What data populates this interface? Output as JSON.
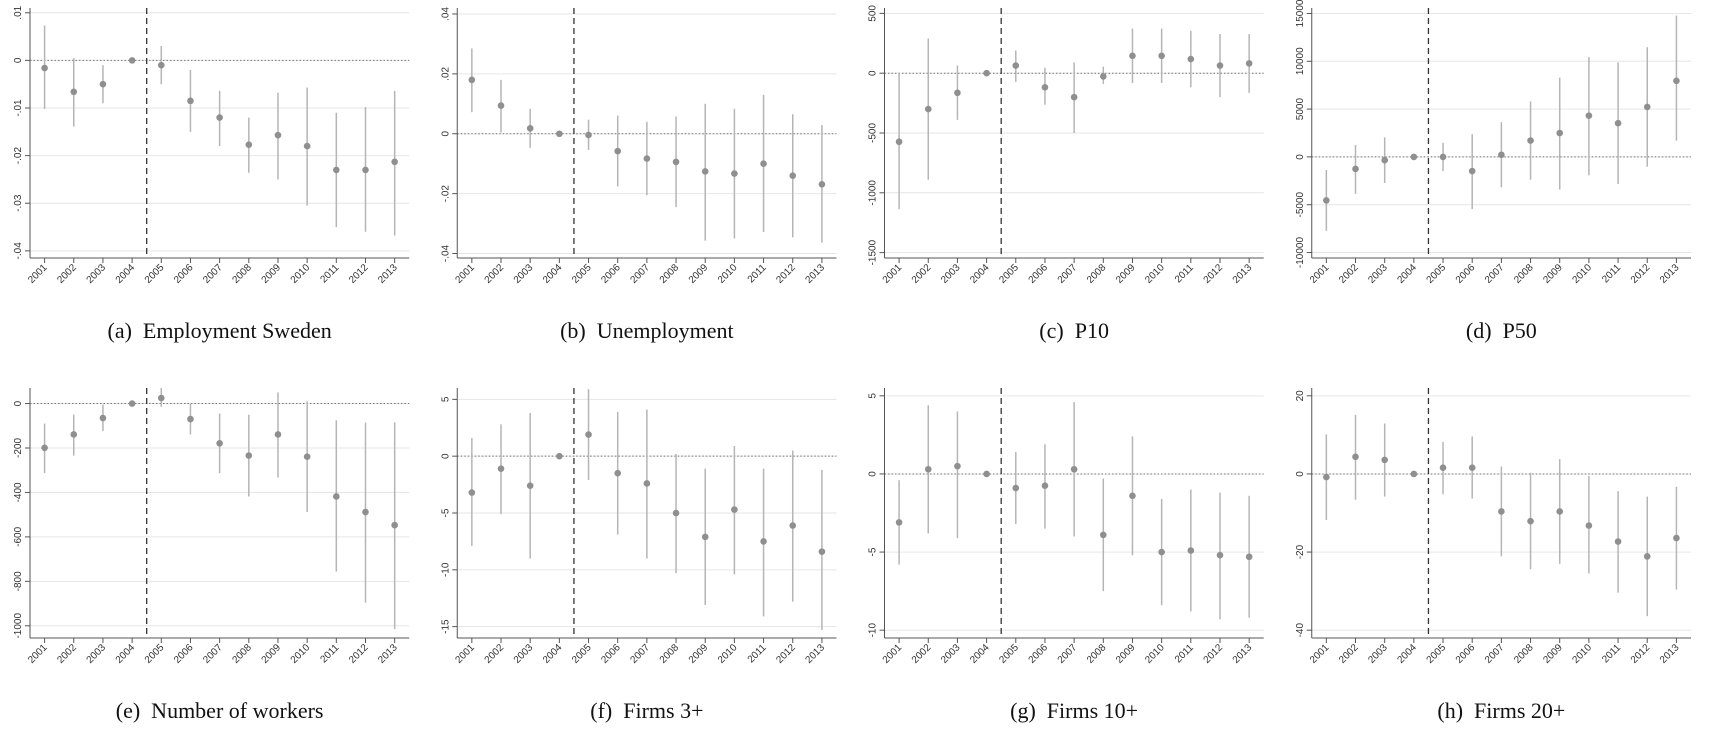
{
  "chart_data": [
    {
      "type": "errorbar",
      "title": "(a)  Employment Sweden",
      "categories": [
        "2001",
        "2002",
        "2003",
        "2004",
        "2005",
        "2006",
        "2007",
        "2008",
        "2009",
        "2010",
        "2011",
        "2012",
        "2013"
      ],
      "values": [
        -0.0016,
        -0.0066,
        -0.005,
        0,
        -0.001,
        -0.0085,
        -0.012,
        -0.0177,
        -0.0157,
        -0.018,
        -0.023,
        -0.023,
        -0.0213
      ],
      "ci_lower": [
        -0.0102,
        -0.0139,
        -0.009,
        null,
        -0.005,
        -0.015,
        -0.018,
        -0.0236,
        -0.025,
        -0.0305,
        -0.035,
        -0.036,
        -0.0368
      ],
      "ci_upper": [
        0.0073,
        0.0005,
        -0.001,
        null,
        0.003,
        -0.002,
        -0.0064,
        -0.012,
        -0.0068,
        -0.0057,
        -0.011,
        -0.0098,
        -0.0064
      ],
      "ylim": [
        -0.0415,
        0.011
      ],
      "yticks": [
        {
          "value": 0.01,
          "label": ".01"
        },
        0,
        {
          "value": -0.01,
          "label": "-.01"
        },
        {
          "value": -0.02,
          "label": "-.02"
        },
        {
          "value": -0.03,
          "label": "-.03"
        },
        {
          "value": -0.04,
          "label": "-.04"
        }
      ],
      "grid": true,
      "color": "#8f8f8f"
    },
    {
      "type": "errorbar",
      "title": "(b)  Unemployment",
      "categories": [
        "2001",
        "2002",
        "2003",
        "2004",
        "2005",
        "2006",
        "2007",
        "2008",
        "2009",
        "2010",
        "2011",
        "2012",
        "2013"
      ],
      "values": [
        0.018,
        0.0094,
        0.0018,
        0,
        -0.0004,
        -0.0058,
        -0.0083,
        -0.0094,
        -0.0126,
        -0.0133,
        -0.01,
        -0.014,
        -0.0169
      ],
      "ci_lower": [
        0.0072,
        0.0004,
        -0.0047,
        null,
        -0.0054,
        -0.0176,
        -0.0205,
        -0.0245,
        -0.0357,
        -0.035,
        -0.0328,
        -0.0346,
        -0.0364
      ],
      "ci_upper": [
        0.0285,
        0.018,
        0.0083,
        null,
        0.0047,
        0.0061,
        0.004,
        0.0058,
        0.01,
        0.0083,
        0.013,
        0.0065,
        0.0029
      ],
      "ylim": [
        -0.0415,
        0.042
      ],
      "yticks": [
        {
          "value": 0.04,
          "label": ".04"
        },
        {
          "value": 0.02,
          "label": ".02"
        },
        0,
        {
          "value": -0.02,
          "label": "-.02"
        },
        {
          "value": -0.04,
          "label": "-.04"
        }
      ],
      "grid": true,
      "color": "#8f8f8f"
    },
    {
      "type": "errorbar",
      "title": "(c)  P10",
      "categories": [
        "2001",
        "2002",
        "2003",
        "2004",
        "2005",
        "2006",
        "2007",
        "2008",
        "2009",
        "2010",
        "2011",
        "2012",
        "2013"
      ],
      "values": [
        -573,
        -300,
        -164,
        0,
        64,
        -118,
        -200,
        -27,
        145,
        145,
        118,
        64,
        82
      ],
      "ci_lower": [
        -1136,
        -890,
        -390,
        null,
        -73,
        -264,
        -500,
        -90,
        -82,
        -82,
        -118,
        -200,
        -164
      ],
      "ci_upper": [
        0,
        290,
        64,
        null,
        190,
        45,
        90,
        55,
        373,
        373,
        355,
        327,
        327
      ],
      "ylim": [
        -1545,
        545
      ],
      "yticks": [
        500,
        0,
        -500,
        -1000,
        -1500
      ],
      "grid": true,
      "color": "#8f8f8f"
    },
    {
      "type": "errorbar",
      "title": "(d)  P50",
      "categories": [
        "2001",
        "2002",
        "2003",
        "2004",
        "2005",
        "2006",
        "2007",
        "2008",
        "2009",
        "2010",
        "2011",
        "2012",
        "2013"
      ],
      "values": [
        -4545,
        -1250,
        -340,
        0,
        0,
        -1477,
        227,
        1705,
        2500,
        4318,
        3523,
        5227,
        7955
      ],
      "ci_lower": [
        -7727,
        -3864,
        -2727,
        null,
        -1477,
        -5455,
        -3182,
        -2386,
        -3409,
        -1932,
        -2841,
        -1023,
        1705
      ],
      "ci_upper": [
        -1364,
        1250,
        2045,
        null,
        1477,
        2386,
        3636,
        5795,
        8295,
        10455,
        9886,
        11477,
        14773
      ],
      "ylim": [
        -10570,
        15570
      ],
      "yticks": [
        15000,
        10000,
        5000,
        0,
        -5000,
        -10000
      ],
      "grid": true,
      "color": "#8f8f8f"
    },
    {
      "type": "errorbar",
      "title": "(e)  Number of workers",
      "categories": [
        "2001",
        "2002",
        "2003",
        "2004",
        "2005",
        "2006",
        "2007",
        "2008",
        "2009",
        "2010",
        "2011",
        "2012",
        "2013"
      ],
      "values": [
        -199,
        -139,
        -65,
        0,
        25,
        -70,
        -179,
        -234,
        -139,
        -239,
        -418,
        -488,
        -547
      ],
      "ci_lower": [
        -313,
        -234,
        -124,
        null,
        -15,
        -139,
        -313,
        -418,
        -333,
        -488,
        -756,
        -896,
        -1015
      ],
      "ci_upper": [
        -90,
        -50,
        -5,
        null,
        70,
        0,
        -45,
        -50,
        50,
        10,
        -75,
        -85,
        -85
      ],
      "ylim": [
        -1055,
        70
      ],
      "yticks": [
        0,
        -200,
        -400,
        -600,
        -800,
        -1000
      ],
      "grid": true,
      "color": "#8f8f8f"
    },
    {
      "type": "errorbar",
      "title": "(f)  Firms 3+",
      "categories": [
        "2001",
        "2002",
        "2003",
        "2004",
        "2005",
        "2006",
        "2007",
        "2008",
        "2009",
        "2010",
        "2011",
        "2012",
        "2013"
      ],
      "values": [
        -3.2,
        -1.1,
        -2.6,
        0,
        1.9,
        -1.5,
        -2.4,
        -5.0,
        -7.1,
        -4.7,
        -7.5,
        -6.1,
        -8.4
      ],
      "ci_lower": [
        -7.9,
        -5.1,
        -9.0,
        null,
        -2.1,
        -6.9,
        -9.0,
        -10.3,
        -13.1,
        -10.4,
        -14.1,
        -12.8,
        -15.3
      ],
      "ci_upper": [
        1.6,
        2.8,
        3.8,
        null,
        5.9,
        3.9,
        4.1,
        0.2,
        -1.1,
        0.9,
        -1.1,
        0.5,
        -1.2
      ],
      "ylim": [
        -16,
        6
      ],
      "yticks": [
        5,
        0,
        -5,
        -10,
        -15
      ],
      "grid": true,
      "color": "#8f8f8f"
    },
    {
      "type": "errorbar",
      "title": "(g)  Firms 10+",
      "categories": [
        "2001",
        "2002",
        "2003",
        "2004",
        "2005",
        "2006",
        "2007",
        "2008",
        "2009",
        "2010",
        "2011",
        "2012",
        "2013"
      ],
      "values": [
        -3.1,
        0.3,
        0.5,
        0,
        -0.9,
        -0.75,
        0.3,
        -3.9,
        -1.4,
        -5.0,
        -4.9,
        -5.2,
        -5.3
      ],
      "ci_lower": [
        -5.8,
        -3.8,
        -4.1,
        null,
        -3.2,
        -3.5,
        -4.0,
        -7.5,
        -5.2,
        -8.4,
        -8.8,
        -9.3,
        -9.2
      ],
      "ci_upper": [
        -0.4,
        4.4,
        4.0,
        null,
        1.4,
        1.9,
        4.6,
        -0.3,
        2.4,
        -1.6,
        -1.0,
        -1.2,
        -1.4
      ],
      "ylim": [
        -10.5,
        5.5
      ],
      "yticks": [
        5,
        0,
        -5,
        -10
      ],
      "grid": true,
      "color": "#8f8f8f"
    },
    {
      "type": "errorbar",
      "title": "(h)  Firms 20+",
      "categories": [
        "2001",
        "2002",
        "2003",
        "2004",
        "2005",
        "2006",
        "2007",
        "2008",
        "2009",
        "2010",
        "2011",
        "2012",
        "2013"
      ],
      "values": [
        -0.8,
        4.4,
        3.6,
        0,
        1.6,
        1.6,
        -9.6,
        -12.1,
        -9.6,
        -13.2,
        -17.3,
        -21.1,
        -16.4
      ],
      "ci_lower": [
        -11.8,
        -6.6,
        -5.8,
        null,
        -5.2,
        -6.3,
        -21.1,
        -24.4,
        -23.0,
        -25.5,
        -30.4,
        -36.4,
        -29.6
      ],
      "ci_upper": [
        10.1,
        15.1,
        12.9,
        null,
        8.2,
        9.6,
        1.9,
        0.3,
        3.8,
        -0.5,
        -4.4,
        -5.8,
        -3.3
      ],
      "ylim": [
        -42,
        22
      ],
      "yticks": [
        20,
        0,
        -20,
        -40
      ],
      "grid": true,
      "color": "#8f8f8f"
    }
  ]
}
